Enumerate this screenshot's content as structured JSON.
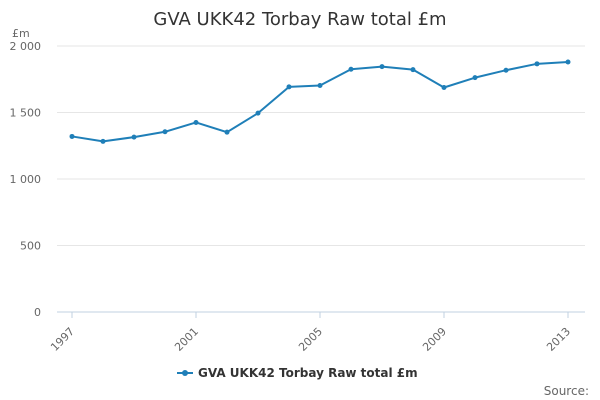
{
  "chart_data": {
    "type": "line",
    "title": "GVA UKK42 Torbay Raw total £m",
    "ylabel": "£m",
    "xlabel": "",
    "ylim": [
      0,
      2000
    ],
    "y_ticks": [
      0,
      500,
      1000,
      1500,
      2000
    ],
    "y_tick_labels": [
      "0",
      "500",
      "1 000",
      "1 500",
      "2 000"
    ],
    "x_ticks": [
      1997,
      2001,
      2005,
      2009,
      2013
    ],
    "x_tick_labels": [
      "1997",
      "2001",
      "2005",
      "2009",
      "2013"
    ],
    "grid": true,
    "legend": "bottom-center",
    "x": [
      1997,
      1998,
      1999,
      2000,
      2001,
      2002,
      2003,
      2004,
      2005,
      2006,
      2007,
      2008,
      2009,
      2010,
      2011,
      2012,
      2013
    ],
    "series": [
      {
        "name": "GVA UKK42 Torbay Raw total £m",
        "color": "#1f7fb8",
        "values": [
          1320,
          1283,
          1315,
          1355,
          1425,
          1352,
          1495,
          1693,
          1703,
          1825,
          1845,
          1822,
          1688,
          1762,
          1818,
          1866,
          1880
        ]
      }
    ],
    "source_label": "Source:"
  }
}
